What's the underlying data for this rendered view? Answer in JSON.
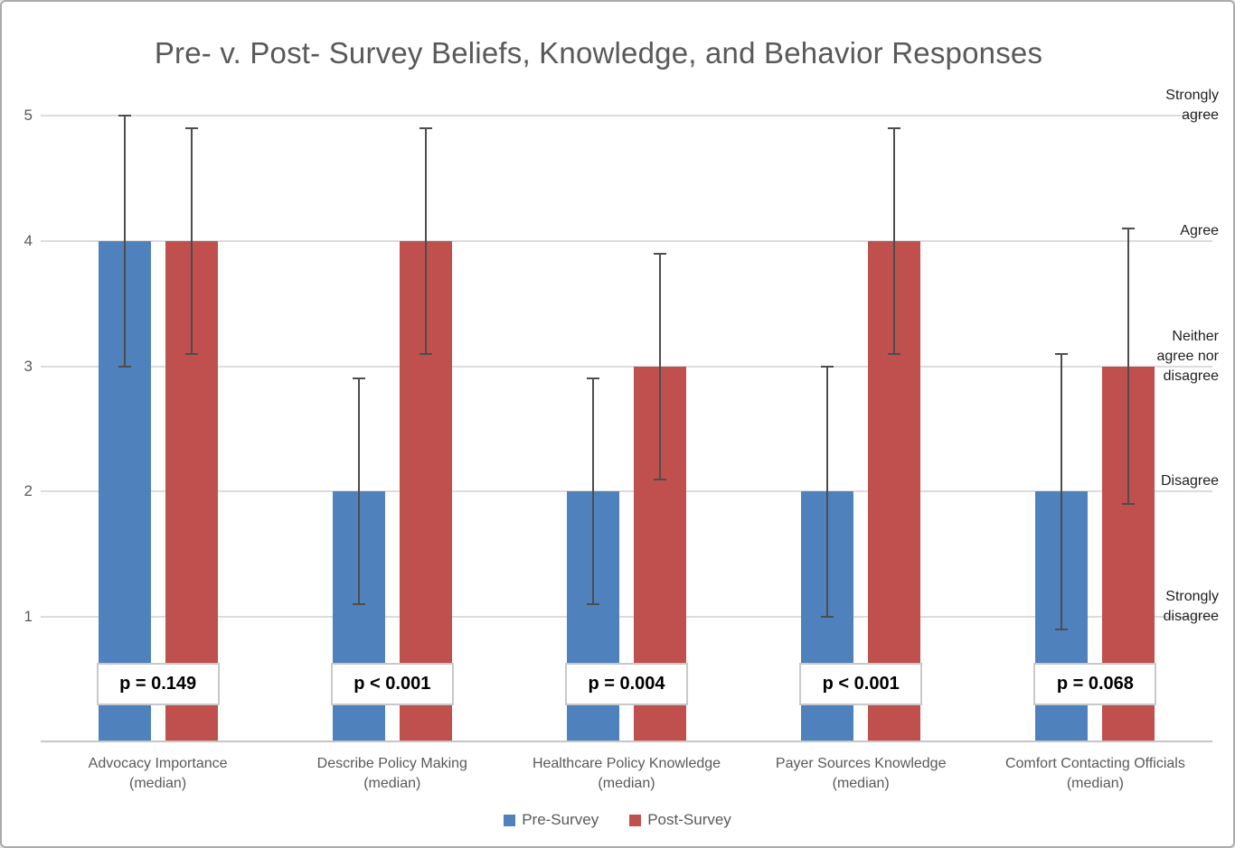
{
  "title": "Pre- v. Post- Survey Beliefs, Knowledge, and Behavior Responses",
  "colors": {
    "pre_survey": "#4F81BD",
    "post_survey": "#C0504D",
    "title_text": "#595959",
    "axis_text": "#595959",
    "scale_label_text": "#1F1F1F",
    "gridline": "#DCDCDC",
    "axis_line": "#C6C6C6",
    "error_bar": "#4D4D4D",
    "p_box_border": "#C9C9C9",
    "p_box_fill": "#FFFFFF"
  },
  "y_axis": {
    "ticks": [
      "5",
      "4",
      "3",
      "2",
      "1"
    ],
    "tick_values": [
      5,
      4,
      3,
      2,
      1
    ]
  },
  "right_scale_labels": [
    {
      "value": 5,
      "name": "strongly-agree",
      "text": "Strongly\nagree"
    },
    {
      "value": 4,
      "name": "agree",
      "text": "Agree"
    },
    {
      "value": 3,
      "name": "neither-agree-nor-disagree",
      "text": "Neither\nagree nor\ndisagree"
    },
    {
      "value": 2,
      "name": "disagree",
      "text": "Disagree"
    },
    {
      "value": 1,
      "name": "strongly-disagree",
      "text": "Strongly\ndisagree"
    }
  ],
  "legend": {
    "items": [
      {
        "label": "Pre-Survey",
        "color": "#4F81BD"
      },
      {
        "label": "Post-Survey",
        "color": "#C0504D"
      }
    ]
  },
  "chart_data": {
    "type": "bar",
    "title": "Pre- v. Post- Survey Beliefs, Knowledge, and Behavior Responses",
    "categories": [
      "Advocacy Importance\n(median)",
      "Describe Policy Making\n(median)",
      "Healthcare Policy Knowledge\n(median)",
      "Payer Sources Knowledge\n(median)",
      "Comfort Contacting Officials\n(median)"
    ],
    "series": [
      {
        "name": "Pre-Survey",
        "color": "#4F81BD",
        "values": [
          4,
          2,
          2,
          2,
          2
        ],
        "error_low": [
          3.0,
          1.1,
          1.1,
          1.0,
          0.9
        ],
        "error_high": [
          5.0,
          2.9,
          2.9,
          3.0,
          3.1
        ]
      },
      {
        "name": "Post-Survey",
        "color": "#C0504D",
        "values": [
          4,
          4,
          3,
          4,
          3
        ],
        "error_low": [
          3.1,
          3.1,
          2.1,
          3.1,
          1.9
        ],
        "error_high": [
          4.9,
          4.9,
          3.9,
          4.9,
          4.1
        ]
      }
    ],
    "p_values": [
      "p = 0.149",
      "p < 0.001",
      "p = 0.004",
      "p < 0.001",
      "p = 0.068"
    ],
    "ylim": [
      0,
      5
    ],
    "grid": true,
    "legend_position": "bottom"
  }
}
